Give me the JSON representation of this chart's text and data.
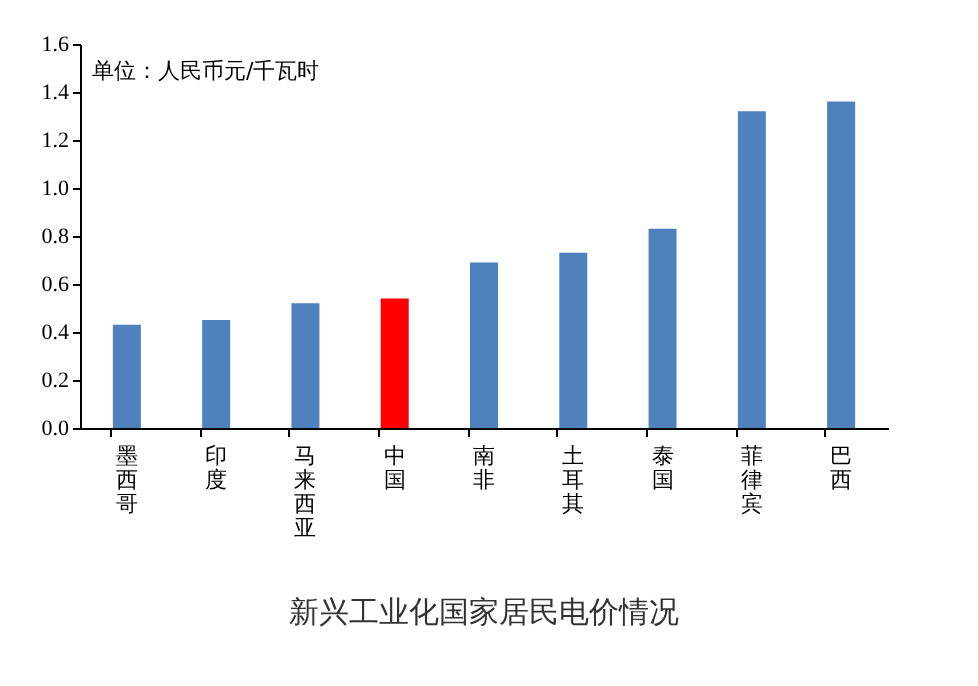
{
  "chart_data": {
    "type": "bar",
    "title": "新兴工业化国家居民电价情况",
    "categories": [
      "墨西哥",
      "印度",
      "马来西亚",
      "中国",
      "南非",
      "土耳其",
      "泰国",
      "菲律宾",
      "巴西"
    ],
    "values": [
      0.43,
      0.45,
      0.52,
      0.54,
      0.69,
      0.73,
      0.83,
      1.32,
      1.36
    ],
    "colors": [
      "#4f81bd",
      "#4f81bd",
      "#4f81bd",
      "#ff0000",
      "#4f81bd",
      "#4f81bd",
      "#4f81bd",
      "#4f81bd",
      "#4f81bd"
    ],
    "ylim": [
      0,
      1.6
    ],
    "yticks": [
      {
        "value": 0,
        "label": "0.0"
      },
      0.2,
      0.4,
      0.6,
      0.8,
      {
        "value": 1,
        "label": "1.0"
      },
      1.2,
      1.4,
      1.6
    ],
    "annotations": [
      "单位：人民币元/千瓦时"
    ],
    "grid": false
  }
}
